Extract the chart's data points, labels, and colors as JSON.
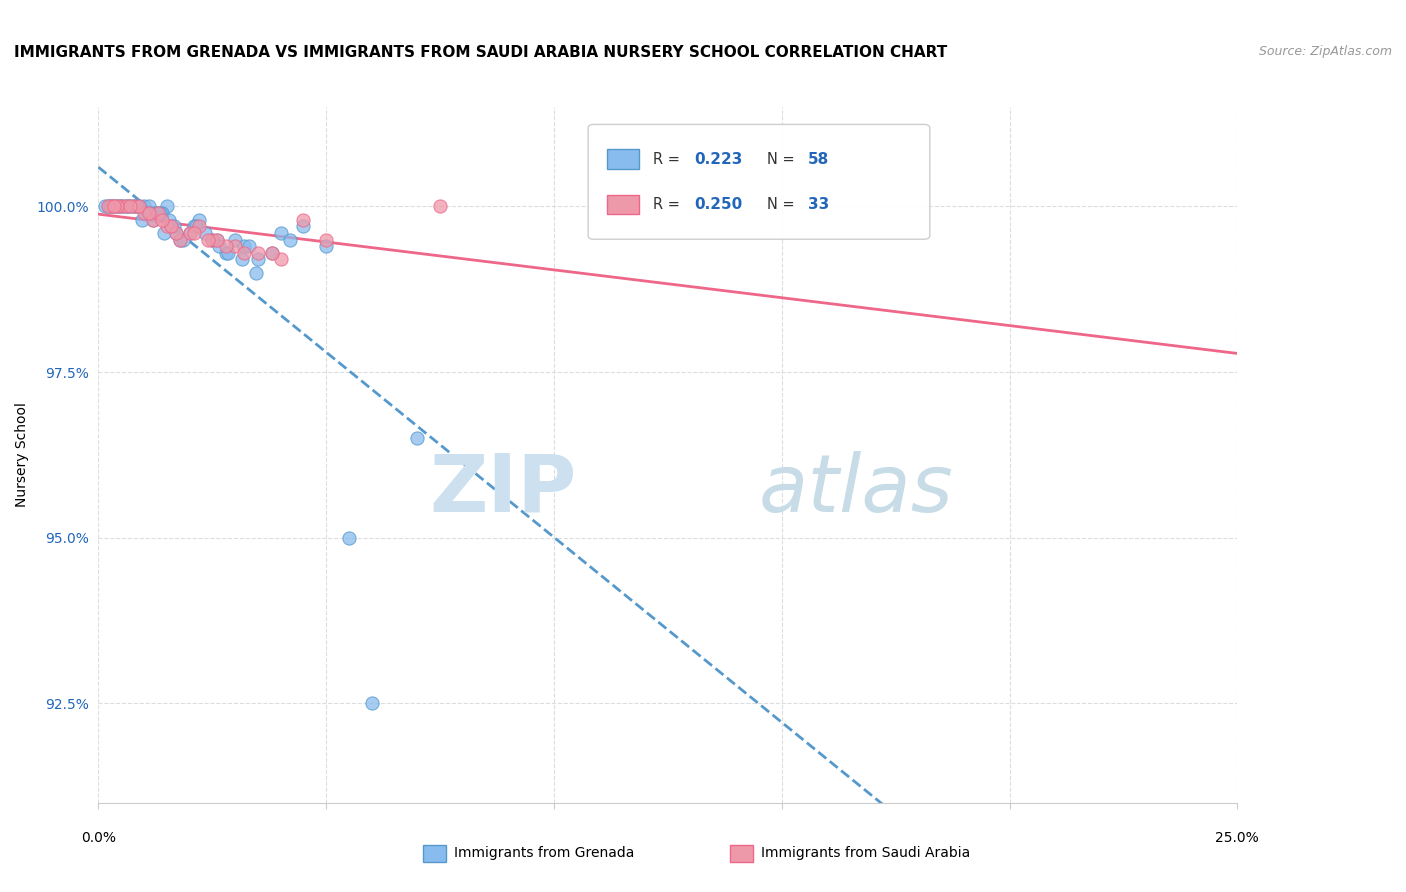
{
  "title": "IMMIGRANTS FROM GRENADA VS IMMIGRANTS FROM SAUDI ARABIA NURSERY SCHOOL CORRELATION CHART",
  "source_text": "Source: ZipAtlas.com",
  "ylabel": "Nursery School",
  "y_tick_vals": [
    92.5,
    95.0,
    97.5,
    100.0
  ],
  "y_tick_labels": [
    "92.5%",
    "95.0%",
    "97.5%",
    "100.0%"
  ],
  "xlim": [
    0.0,
    25.0
  ],
  "ylim": [
    91.0,
    101.5
  ],
  "legend_grenada": "Immigrants from Grenada",
  "legend_saudi": "Immigrants from Saudi Arabia",
  "R_grenada": "0.223",
  "N_grenada": "58",
  "R_saudi": "0.250",
  "N_saudi": "33",
  "color_grenada": "#88bbee",
  "color_saudi": "#ee99aa",
  "line_color_grenada": "#5599cc",
  "line_color_saudi": "#ee6688",
  "watermark_zip_color": "#cce0f0",
  "watermark_atlas_color": "#c8dce8",
  "grenada_x": [
    0.3,
    0.5,
    0.7,
    0.8,
    1.0,
    1.1,
    1.2,
    1.3,
    1.5,
    1.6,
    1.8,
    2.0,
    2.2,
    2.5,
    2.8,
    3.0,
    3.2,
    3.5,
    4.0,
    4.5,
    5.0,
    0.2,
    0.4,
    0.6,
    0.9,
    1.4,
    1.7,
    2.1,
    2.6,
    3.3,
    0.15,
    0.35,
    0.55,
    0.75,
    1.05,
    1.25,
    1.55,
    0.25,
    0.45,
    0.65,
    0.85,
    1.15,
    1.35,
    1.65,
    1.85,
    2.15,
    2.35,
    2.65,
    2.85,
    3.15,
    3.45,
    0.95,
    4.2,
    3.8,
    1.45,
    5.5,
    6.0,
    7.0
  ],
  "grenada_y": [
    100.0,
    100.0,
    100.0,
    100.0,
    100.0,
    100.0,
    99.8,
    99.9,
    100.0,
    99.7,
    99.5,
    99.6,
    99.8,
    99.5,
    99.3,
    99.5,
    99.4,
    99.2,
    99.6,
    99.7,
    99.4,
    100.0,
    100.0,
    100.0,
    100.0,
    99.9,
    99.6,
    99.7,
    99.5,
    99.4,
    100.0,
    100.0,
    100.0,
    100.0,
    99.9,
    99.9,
    99.8,
    100.0,
    100.0,
    100.0,
    100.0,
    99.9,
    99.9,
    99.7,
    99.5,
    99.7,
    99.6,
    99.4,
    99.3,
    99.2,
    99.0,
    99.8,
    99.5,
    99.3,
    99.6,
    95.0,
    92.5,
    96.5
  ],
  "saudi_x": [
    0.5,
    0.8,
    1.0,
    1.2,
    1.5,
    1.8,
    2.0,
    2.5,
    3.0,
    3.5,
    4.0,
    0.3,
    0.6,
    0.9,
    1.3,
    1.7,
    2.2,
    2.8,
    0.4,
    0.7,
    1.1,
    1.6,
    2.1,
    0.2,
    1.4,
    2.6,
    3.2,
    7.5,
    4.5,
    5.0,
    2.4,
    3.8,
    0.35
  ],
  "saudi_y": [
    100.0,
    100.0,
    99.9,
    99.8,
    99.7,
    99.5,
    99.6,
    99.5,
    99.4,
    99.3,
    99.2,
    100.0,
    100.0,
    100.0,
    99.9,
    99.6,
    99.7,
    99.4,
    100.0,
    100.0,
    99.9,
    99.7,
    99.6,
    100.0,
    99.8,
    99.5,
    99.3,
    100.0,
    99.8,
    99.5,
    99.5,
    99.3,
    100.0
  ]
}
